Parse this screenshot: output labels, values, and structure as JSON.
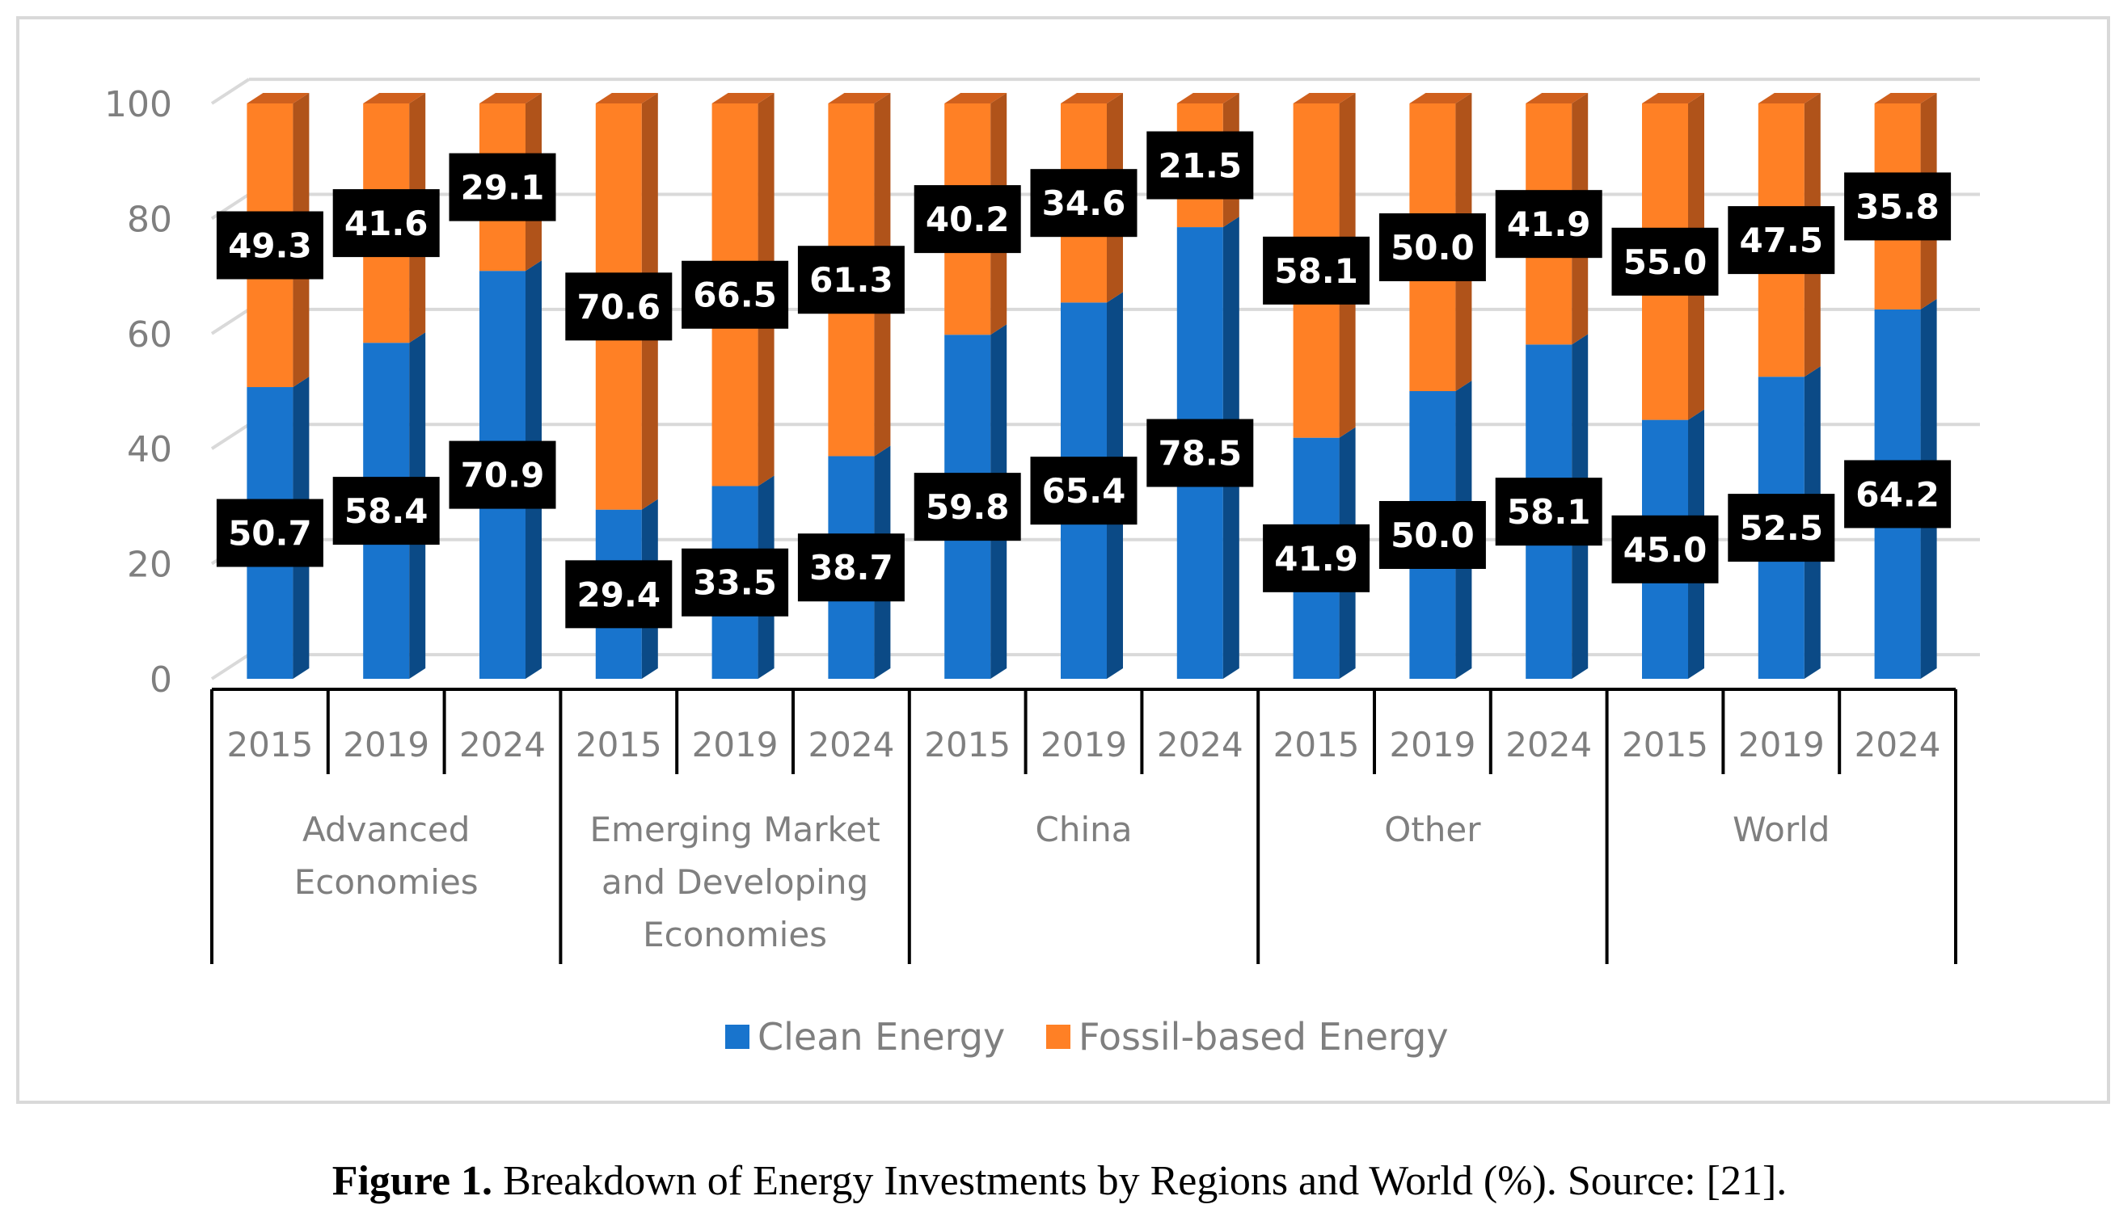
{
  "chart_data": {
    "type": "bar",
    "stacked": true,
    "three_d": true,
    "groups": [
      "Advanced Economies",
      "Emerging Market and Developing Economies",
      "China",
      "Other",
      "World"
    ],
    "group_label_lines": [
      [
        "Advanced",
        "Economies"
      ],
      [
        "Emerging Market",
        "and Developing",
        "Economies"
      ],
      [
        "China"
      ],
      [
        "Other"
      ],
      [
        "World"
      ]
    ],
    "years": [
      "2015",
      "2019",
      "2024"
    ],
    "series": [
      {
        "name": "Clean Energy",
        "color": "#1874cd",
        "side": "#0b4a86",
        "values": [
          50.7,
          58.4,
          70.9,
          29.4,
          33.5,
          38.7,
          59.8,
          65.4,
          78.5,
          41.9,
          50.0,
          58.1,
          45.0,
          52.5,
          64.2
        ]
      },
      {
        "name": "Fossil-based Energy",
        "color": "#ff8025",
        "side": "#b0531a",
        "top": "#d0601d",
        "values": [
          49.3,
          41.6,
          29.1,
          70.6,
          66.5,
          61.3,
          40.2,
          34.6,
          21.5,
          58.1,
          50.0,
          41.9,
          55.0,
          47.5,
          35.8
        ]
      }
    ],
    "yticks": [
      "0",
      "20",
      "40",
      "60",
      "80",
      "100"
    ],
    "ylim": [
      0,
      100
    ],
    "grid": true,
    "legend_position": "bottom"
  },
  "caption": {
    "label": "Figure 1.",
    "text": " Breakdown of Energy Investments by Regions and World (%). Source: [21]."
  }
}
